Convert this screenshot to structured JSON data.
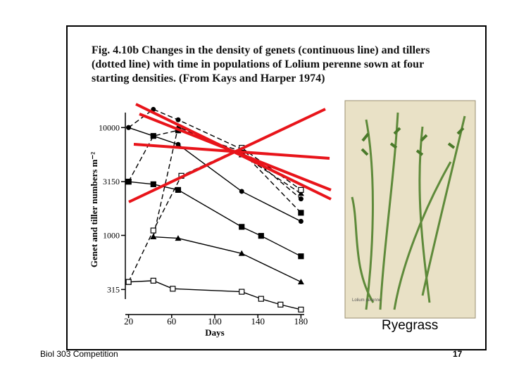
{
  "chart_data": {
    "type": "line",
    "title": "Fig. 4.10b  Changes in the density of genets (continuous line) and tillers (dotted line) with time in populations of Lolium perenne sown at four starting densities. (From Kays and Harper 1974)",
    "x_label": "Days",
    "y_label": "Genet and tiller numbers m⁻²",
    "log_y": true,
    "xlim": [
      17,
      183
    ],
    "xticks": [
      20,
      60,
      100,
      140,
      180
    ],
    "ylim": [
      190,
      16000
    ],
    "yticks": [
      315,
      1000,
      3150,
      10000
    ],
    "series": [
      {
        "x": [
          20,
          43,
          66,
          125,
          180
        ],
        "values": [
          10000,
          8360,
          6980,
          2560,
          1350
        ],
        "marker": "circle",
        "dashed": false,
        "color": "#000000"
      },
      {
        "x": [
          20,
          43,
          66,
          125,
          143,
          180
        ],
        "values": [
          3150,
          2980,
          2640,
          1200,
          990,
          640
        ],
        "marker": "square",
        "dashed": false,
        "color": "#000000"
      },
      {
        "x": [
          43,
          66,
          125,
          180
        ],
        "values": [
          970,
          940,
          680,
          370
        ],
        "marker": "triangle",
        "dashed": false,
        "color": "#000000"
      },
      {
        "x": [
          20,
          43,
          61,
          125,
          143,
          161,
          180
        ],
        "values": [
          370,
          380,
          320,
          300,
          258,
          228,
          205
        ],
        "marker": "open-square",
        "dashed": false,
        "color": "#000000"
      },
      {
        "x": [
          20,
          43,
          66,
          125,
          180
        ],
        "values": [
          10000,
          14750,
          11800,
          6300,
          2180
        ],
        "marker": "circle",
        "dashed": true,
        "color": "#000000"
      },
      {
        "x": [
          20,
          43,
          66,
          125,
          180
        ],
        "values": [
          3150,
          8360,
          9420,
          6010,
          1620
        ],
        "marker": "square",
        "dashed": true,
        "color": "#000000"
      },
      {
        "x": [
          43,
          66,
          125,
          180
        ],
        "values": [
          970,
          10150,
          5590,
          2450
        ],
        "marker": "triangle",
        "dashed": true,
        "color": "#000000"
      },
      {
        "x": [
          20,
          43,
          69,
          125,
          180
        ],
        "values": [
          370,
          1110,
          3570,
          6490,
          2640
        ],
        "marker": "open-square",
        "dashed": true,
        "color": "#000000"
      }
    ]
  },
  "slide": {
    "caption": "Ryegrass",
    "footer": "Biol 303 Competition",
    "page_number": "17"
  }
}
